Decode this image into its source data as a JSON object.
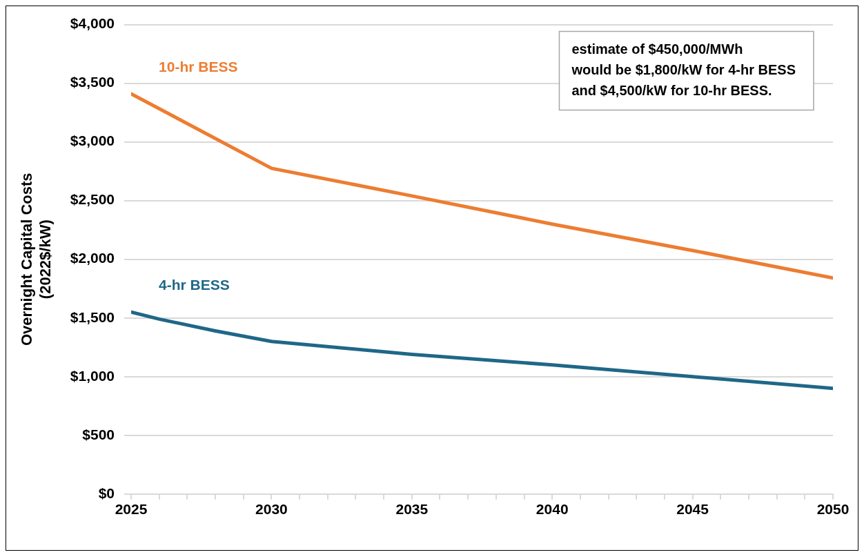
{
  "chart_data": {
    "type": "line",
    "ylabel": "Overnight Capital Costs\n(2022$/kW)",
    "x": [
      2025,
      2026,
      2028,
      2030,
      2035,
      2040,
      2045,
      2050
    ],
    "series": [
      {
        "name": "10-hr BESS",
        "color": "#ed7d31",
        "x": [
          2025,
          2030,
          2035,
          2040,
          2045,
          2050
        ],
        "values": [
          3410,
          2775,
          2540,
          2300,
          2075,
          1840
        ]
      },
      {
        "name": "4-hr BESS",
        "color": "#1f6788",
        "values": [
          1550,
          1490,
          1390,
          1300,
          1190,
          1100,
          1000,
          900
        ]
      }
    ],
    "xlim": [
      2025,
      2050
    ],
    "xticks": [
      2025,
      {
        "value": 2026,
        "label": null
      },
      {
        "value": 2027,
        "label": null
      },
      {
        "value": 2028,
        "label": null
      },
      {
        "value": 2029,
        "label": null
      },
      2030,
      {
        "value": 2031,
        "label": null
      },
      {
        "value": 2032,
        "label": null
      },
      {
        "value": 2033,
        "label": null
      },
      {
        "value": 2034,
        "label": null
      },
      2035,
      {
        "value": 2036,
        "label": null
      },
      {
        "value": 2037,
        "label": null
      },
      {
        "value": 2038,
        "label": null
      },
      {
        "value": 2039,
        "label": null
      },
      2040,
      {
        "value": 2041,
        "label": null
      },
      {
        "value": 2042,
        "label": null
      },
      {
        "value": 2043,
        "label": null
      },
      {
        "value": 2044,
        "label": null
      },
      2045,
      {
        "value": 2046,
        "label": null
      },
      {
        "value": 2047,
        "label": null
      },
      {
        "value": 2048,
        "label": null
      },
      {
        "value": 2049,
        "label": null
      },
      2050
    ],
    "ylim": [
      0,
      4000
    ],
    "yticks": [
      {
        "value": 0,
        "label": "$0"
      },
      {
        "value": 500,
        "label": "$500"
      },
      {
        "value": 1000,
        "label": "$1,000"
      },
      {
        "value": 1500,
        "label": "$1,500"
      },
      {
        "value": 2000,
        "label": "$2,000"
      },
      {
        "value": 2500,
        "label": "$2,500"
      },
      {
        "value": 3000,
        "label": "$3,000"
      },
      {
        "value": 3500,
        "label": "$3,500"
      },
      {
        "value": 4000,
        "label": "$4,000"
      }
    ],
    "grid": "y",
    "legend": false,
    "marker": "none",
    "line_style": "solid",
    "annotations": [
      "estimate of $450,000/MWh\nwould be $1,800/kW for 4-hr BESS\nand $4,500/kW for 10-hr BESS."
    ]
  }
}
